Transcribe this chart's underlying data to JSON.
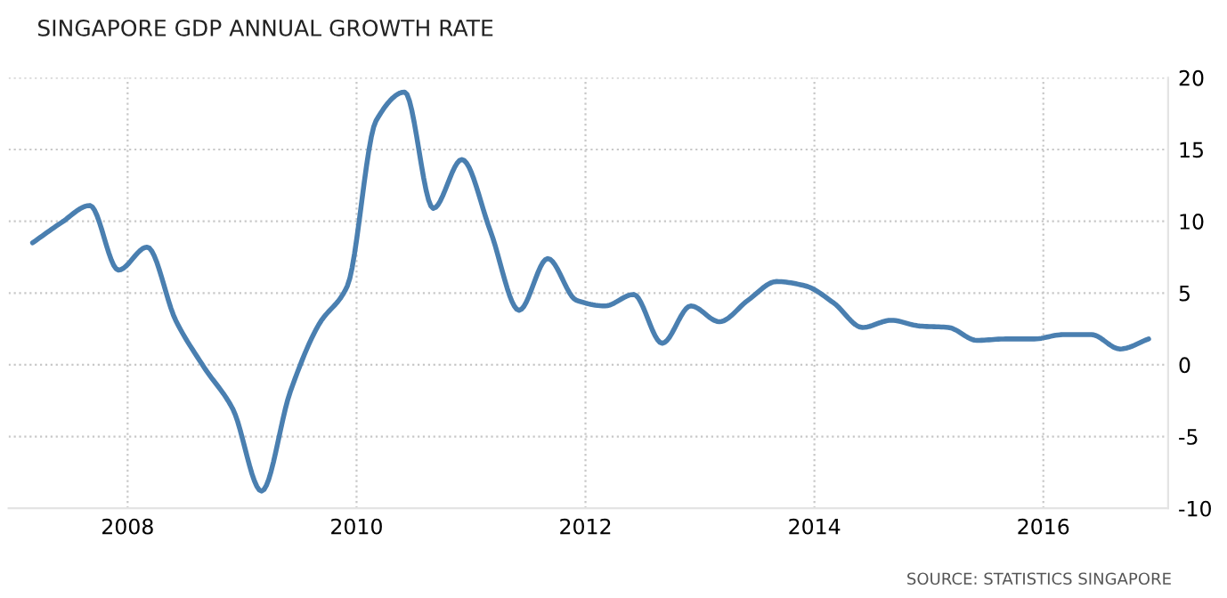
{
  "chart_data": {
    "type": "line",
    "title": "SINGAPORE GDP ANNUAL GROWTH RATE",
    "x": [
      2007.17,
      2007.42,
      2007.67,
      2007.92,
      2008.17,
      2008.42,
      2008.67,
      2008.92,
      2009.17,
      2009.42,
      2009.67,
      2009.92,
      2010.17,
      2010.42,
      2010.67,
      2010.92,
      2011.17,
      2011.42,
      2011.67,
      2011.92,
      2012.17,
      2012.42,
      2012.67,
      2012.92,
      2013.17,
      2013.42,
      2013.67,
      2013.92,
      2014.17,
      2014.42,
      2014.67,
      2014.92,
      2015.17,
      2015.42,
      2015.67,
      2015.92,
      2016.17,
      2016.42,
      2016.67,
      2016.92
    ],
    "series": [
      {
        "color": "#4a7fb0",
        "values": [
          8.5,
          9.9,
          11.1,
          6.6,
          8.2,
          3.1,
          -0.2,
          -3.1,
          -8.8,
          -1.9,
          2.8,
          5.5,
          17,
          19,
          10.9,
          14.3,
          9.3,
          3.8,
          7.4,
          4.5,
          4.1,
          4.9,
          1.5,
          4.1,
          3.0,
          4.5,
          5.8,
          5.5,
          4.3,
          2.6,
          3.1,
          2.7,
          2.6,
          1.7,
          1.8,
          1.8,
          2.1,
          2.1,
          1.1,
          1.8
        ]
      }
    ],
    "xlim": [
      2006.96,
      2017.09
    ],
    "xticks": [
      2008,
      2010,
      2012,
      2014,
      2016
    ],
    "ylim": [
      -10,
      20
    ],
    "yticks": [
      -10,
      -5,
      0,
      5,
      10,
      15,
      20
    ],
    "grid": true,
    "marker": "none",
    "line_style": "solid",
    "annotations": [
      "SOURCE: STATISTICS SINGAPORE"
    ]
  }
}
